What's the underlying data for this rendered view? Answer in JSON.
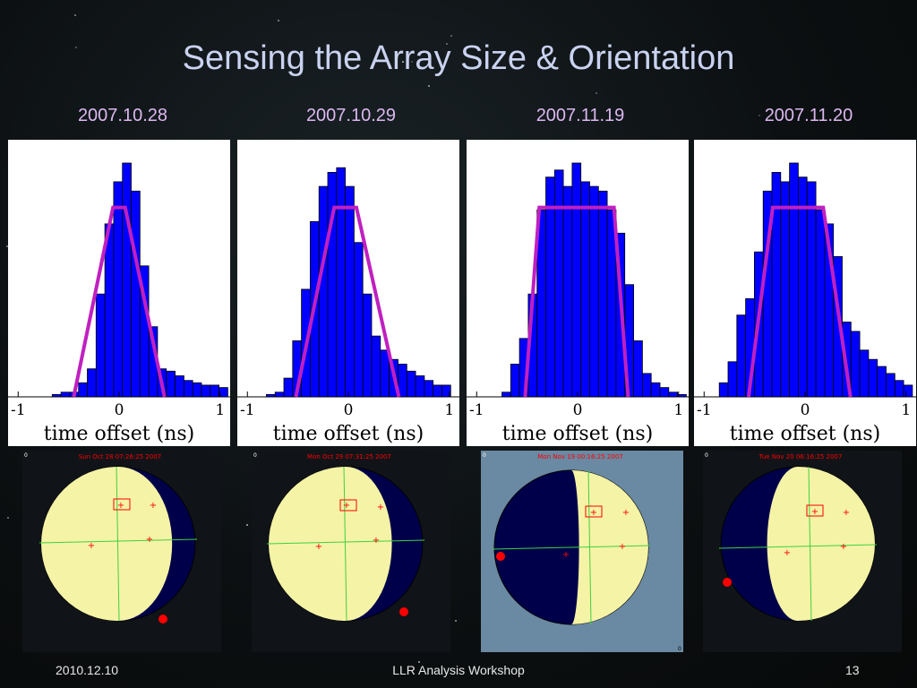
{
  "slide": {
    "title": "Sensing the Array Size & Orientation",
    "footer_date": "2010.12.10",
    "footer_event": "LLR Analysis Workshop",
    "page_number": "13"
  },
  "colors": {
    "bar_fill": "#0000ff",
    "model_line": "#c020c0",
    "moon_lit": "#f5f3a6",
    "moon_dark": "#00004a",
    "marker_red": "#ff0000",
    "grid_green": "#40d040"
  },
  "chart_data": [
    {
      "type": "bar",
      "title": "2007.10.28",
      "xlabel": "time offset (ns)",
      "xlim": [
        -1.1,
        1.1
      ],
      "xticks": [
        -1,
        0,
        1
      ],
      "bin_width": 0.0871,
      "bin_left": [
        -0.75,
        -0.663,
        -0.576,
        -0.489,
        -0.402,
        -0.315,
        -0.228,
        -0.141,
        -0.054,
        0.033,
        0.12,
        0.207,
        0.294,
        0.381,
        0.468,
        0.555,
        0.642,
        0.729,
        0.816,
        0.903,
        0.99
      ],
      "values": [
        0.0,
        0.01,
        0.02,
        0.02,
        0.06,
        0.12,
        0.44,
        0.74,
        0.92,
        1.0,
        0.88,
        0.56,
        0.3,
        0.12,
        0.11,
        0.09,
        0.07,
        0.06,
        0.05,
        0.05,
        0.04
      ],
      "model_line": {
        "x": [
          -0.45,
          -0.06,
          0.06,
          0.45
        ],
        "y": [
          0.0,
          0.81,
          0.81,
          0.0
        ]
      }
    },
    {
      "type": "bar",
      "title": "2007.10.29",
      "xlabel": "time offset (ns)",
      "xlim": [
        -1.1,
        1.1
      ],
      "xticks": [
        -1,
        0,
        1
      ],
      "bin_width": 0.0871,
      "bin_left": [
        -0.9,
        -0.813,
        -0.726,
        -0.639,
        -0.552,
        -0.465,
        -0.378,
        -0.291,
        -0.204,
        -0.117,
        -0.03,
        0.057,
        0.144,
        0.231,
        0.318,
        0.405,
        0.492,
        0.579,
        0.666,
        0.753,
        0.84,
        0.927
      ],
      "values": [
        0.0,
        0.01,
        0.02,
        0.08,
        0.24,
        0.46,
        0.75,
        0.9,
        0.96,
        0.98,
        0.9,
        0.66,
        0.44,
        0.26,
        0.2,
        0.16,
        0.14,
        0.11,
        0.09,
        0.07,
        0.05,
        0.05
      ],
      "model_line": {
        "x": [
          -0.52,
          -0.14,
          0.08,
          0.5
        ],
        "y": [
          0.0,
          0.81,
          0.81,
          0.0
        ]
      }
    },
    {
      "type": "bar",
      "title": "2007.11.19",
      "xlabel": "time offset (ns)",
      "xlim": [
        -1.1,
        1.1
      ],
      "xticks": [
        -1,
        0,
        1
      ],
      "bin_width": 0.0871,
      "bin_left": [
        -0.75,
        -0.663,
        -0.576,
        -0.489,
        -0.402,
        -0.315,
        -0.228,
        -0.141,
        -0.054,
        0.033,
        0.12,
        0.207,
        0.294,
        0.381,
        0.468,
        0.555,
        0.642,
        0.729,
        0.816,
        0.903,
        0.99
      ],
      "values": [
        0.02,
        0.14,
        0.25,
        0.44,
        0.8,
        0.94,
        0.97,
        0.9,
        1.0,
        0.92,
        0.9,
        0.88,
        0.8,
        0.7,
        0.48,
        0.24,
        0.1,
        0.06,
        0.04,
        0.02,
        0.01
      ],
      "model_line": {
        "x": [
          -0.52,
          -0.38,
          0.36,
          0.5
        ],
        "y": [
          0.0,
          0.81,
          0.81,
          0.0
        ]
      }
    },
    {
      "type": "bar",
      "title": "2007.11.20",
      "xlabel": "time offset (ns)",
      "xlim": [
        -1.1,
        1.1
      ],
      "xticks": [
        -1,
        0,
        1
      ],
      "bin_width": 0.0871,
      "bin_left": [
        -0.85,
        -0.763,
        -0.676,
        -0.589,
        -0.502,
        -0.415,
        -0.328,
        -0.241,
        -0.154,
        -0.067,
        0.02,
        0.107,
        0.194,
        0.281,
        0.368,
        0.455,
        0.542,
        0.629,
        0.716,
        0.803,
        0.89,
        0.977
      ],
      "values": [
        0.06,
        0.15,
        0.35,
        0.42,
        0.62,
        0.88,
        0.96,
        0.92,
        1.0,
        0.94,
        0.92,
        0.8,
        0.74,
        0.6,
        0.32,
        0.28,
        0.2,
        0.16,
        0.13,
        0.1,
        0.07,
        0.05
      ],
      "model_line": {
        "x": [
          -0.56,
          -0.32,
          0.18,
          0.45
        ],
        "y": [
          0.0,
          0.81,
          0.81,
          0.0
        ]
      }
    }
  ],
  "moon_views": [
    {
      "timestamp": "Sun Oct 28 07:26:25 2007",
      "corner_label": "0",
      "background": "#101418",
      "lit_fraction": 0.85,
      "dark_limb": "right"
    },
    {
      "timestamp": "Mon Oct 29 07:31:25 2007",
      "corner_label": "0",
      "background": "#101418",
      "lit_fraction": 0.8,
      "dark_limb": "right"
    },
    {
      "timestamp": "Mon Nov 19 00:16:25 2007",
      "corner_label": "0",
      "corner_label_br": "0",
      "background": "#6a89a2",
      "lit_fraction": 0.45,
      "dark_limb": "left"
    },
    {
      "timestamp": "Tue Nov 20 06:16:25 2007",
      "corner_label": "0",
      "background": "#101418",
      "lit_fraction": 0.7,
      "dark_limb": "left"
    }
  ]
}
